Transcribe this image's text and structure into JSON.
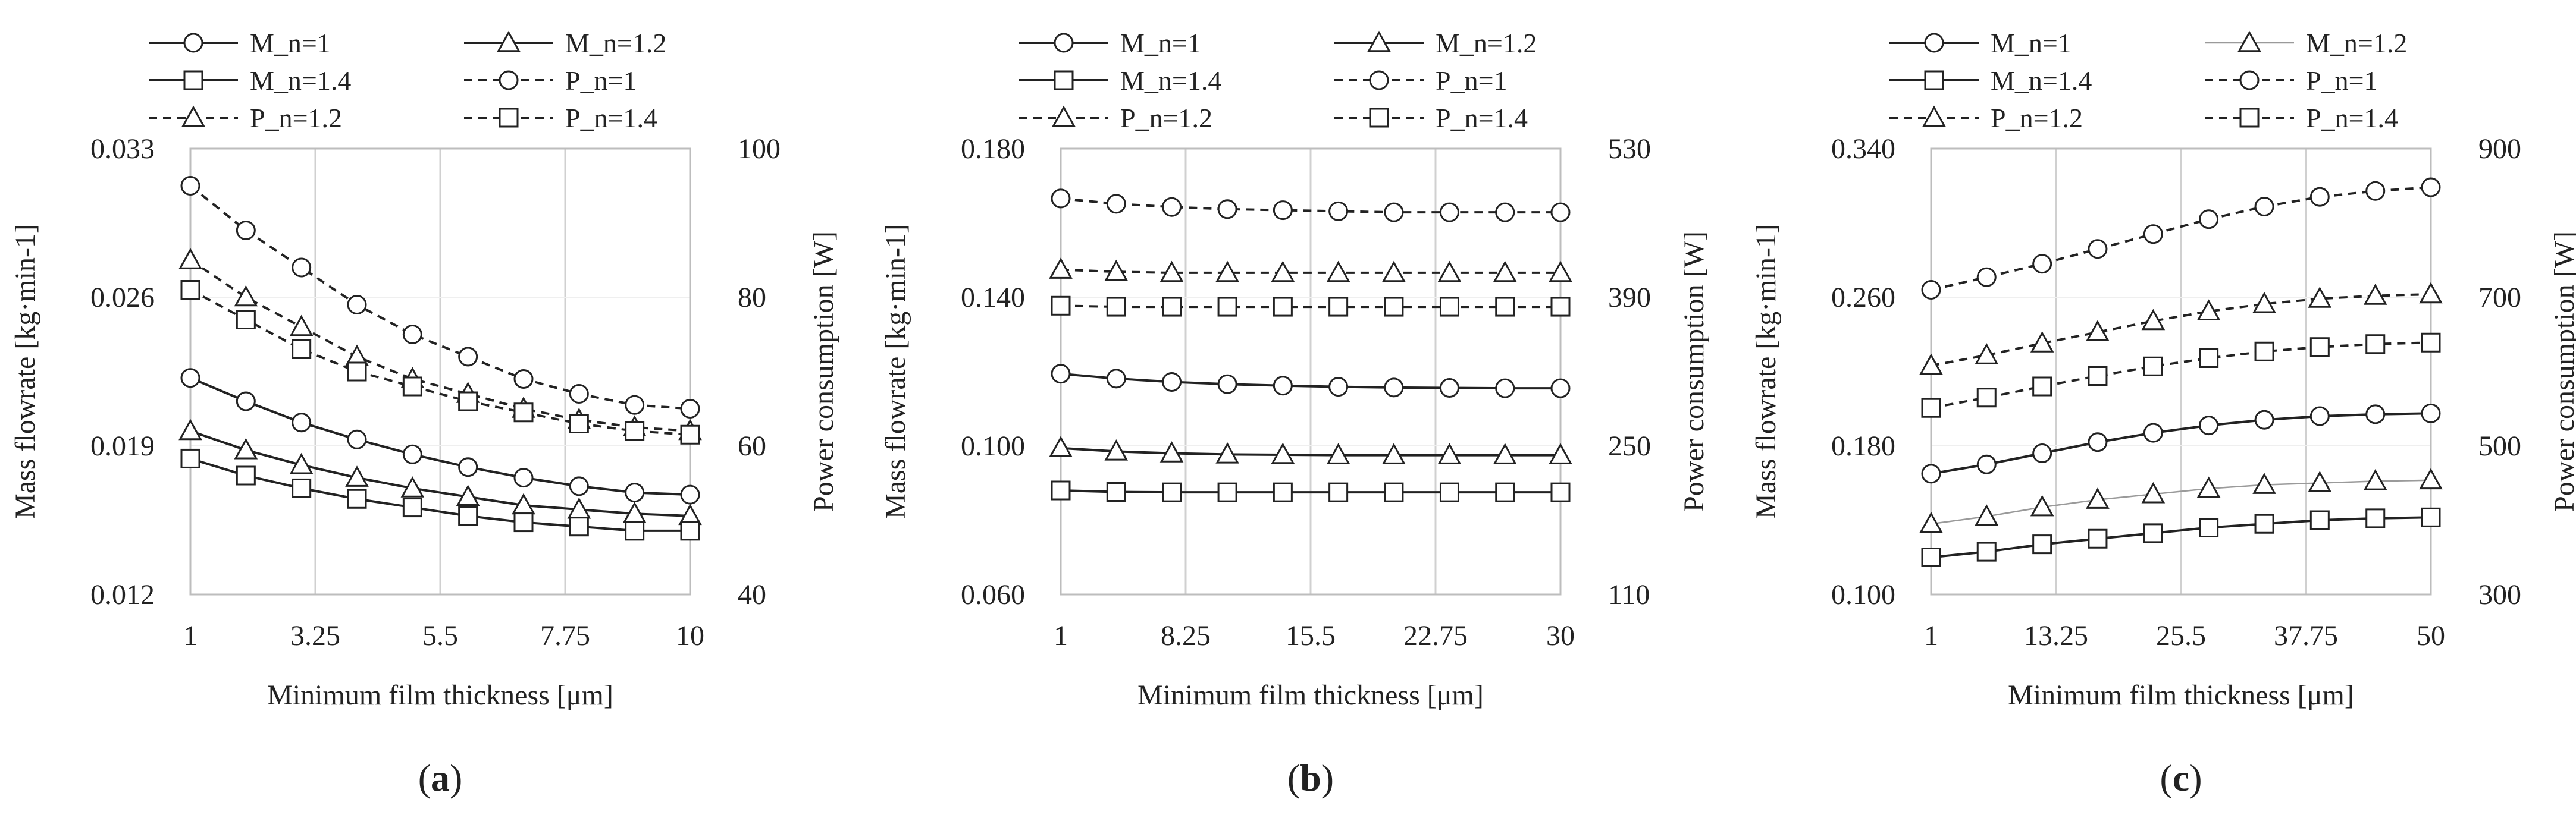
{
  "chart_data": [
    {
      "type": "line",
      "panel_label": "a",
      "x": [
        1,
        2,
        3,
        4,
        5,
        6,
        7,
        8,
        9,
        10
      ],
      "xticks": [
        "1",
        "3.25",
        "5.5",
        "7.75",
        "10"
      ],
      "xlim": [
        1,
        10
      ],
      "xlabel": "Minimum film thickness [μm]",
      "ylabel_left": "Mass flowrate [kg·min-1]",
      "ylabel_right": "Power consumption [W]",
      "ylim_left": [
        0.012,
        0.033
      ],
      "ylim_right": [
        40,
        100
      ],
      "yticks_left": [
        "0.012",
        "0.019",
        "0.026",
        "0.033"
      ],
      "yticks_right": [
        "40",
        "60",
        "80",
        "100"
      ],
      "grid": "vertical",
      "legend_position": "top",
      "series": [
        {
          "name": "M_n=1",
          "axis": "left",
          "style": "solid",
          "marker": "circle",
          "values": [
            0.0222,
            0.0211,
            0.0201,
            0.0193,
            0.0186,
            0.018,
            0.0175,
            0.0171,
            0.0168,
            0.0167
          ]
        },
        {
          "name": "M_n=1.2",
          "axis": "left",
          "style": "solid",
          "marker": "triangle",
          "values": [
            0.0197,
            0.0188,
            0.0181,
            0.0175,
            0.017,
            0.0166,
            0.0162,
            0.016,
            0.0158,
            0.0157
          ]
        },
        {
          "name": "M_n=1.4",
          "axis": "left",
          "style": "solid",
          "marker": "square",
          "values": [
            0.0184,
            0.0176,
            0.017,
            0.0165,
            0.0161,
            0.0157,
            0.0154,
            0.0152,
            0.015,
            0.015
          ]
        },
        {
          "name": "P_n=1",
          "axis": "right",
          "style": "dashed",
          "marker": "circle",
          "values": [
            95,
            89,
            84,
            79,
            75,
            72,
            69,
            67,
            65.5,
            65
          ]
        },
        {
          "name": "P_n=1.2",
          "axis": "right",
          "style": "dashed",
          "marker": "triangle",
          "values": [
            85,
            80,
            76,
            72,
            69,
            67,
            65,
            63.5,
            62.5,
            62
          ]
        },
        {
          "name": "P_n=1.4",
          "axis": "right",
          "style": "dashed",
          "marker": "square",
          "values": [
            81,
            77,
            73,
            70,
            68,
            66,
            64.5,
            63,
            62,
            61.5
          ]
        }
      ]
    },
    {
      "type": "line",
      "panel_label": "b",
      "x": [
        1,
        4.22,
        7.44,
        10.67,
        13.89,
        17.11,
        20.33,
        23.56,
        26.78,
        30
      ],
      "xticks": [
        "1",
        "8.25",
        "15.5",
        "22.75",
        "30"
      ],
      "xlim": [
        1,
        30
      ],
      "xlabel": "Minimum film thickness [μm]",
      "ylabel_left": "Mass flowrate [kg·min-1]",
      "ylabel_right": "Power consumption [W]",
      "ylim_left": [
        0.06,
        0.18
      ],
      "ylim_right": [
        110,
        530
      ],
      "yticks_left": [
        "0.060",
        "0.100",
        "0.140",
        "0.180"
      ],
      "yticks_right": [
        "110",
        "250",
        "390",
        "530"
      ],
      "grid": "vertical",
      "legend_position": "top",
      "series": [
        {
          "name": "M_n=1",
          "axis": "left",
          "style": "solid",
          "marker": "circle",
          "values": [
            0.1194,
            0.1181,
            0.1172,
            0.1166,
            0.1162,
            0.1159,
            0.1157,
            0.1156,
            0.1155,
            0.1155
          ]
        },
        {
          "name": "M_n=1.2",
          "axis": "left",
          "style": "solid",
          "marker": "triangle",
          "values": [
            0.0994,
            0.0985,
            0.098,
            0.0977,
            0.0976,
            0.0975,
            0.0975,
            0.0975,
            0.0975,
            0.0975
          ]
        },
        {
          "name": "M_n=1.4",
          "axis": "left",
          "style": "solid",
          "marker": "square",
          "values": [
            0.088,
            0.0876,
            0.0875,
            0.0875,
            0.0875,
            0.0875,
            0.0875,
            0.0875,
            0.0875,
            0.0875
          ]
        },
        {
          "name": "P_n=1",
          "axis": "right",
          "style": "dashed",
          "marker": "circle",
          "values": [
            483,
            478,
            475,
            473,
            472,
            471,
            470,
            470,
            470,
            470
          ]
        },
        {
          "name": "P_n=1.2",
          "axis": "right",
          "style": "dashed",
          "marker": "triangle",
          "values": [
            416,
            414,
            413,
            413,
            413,
            413,
            413,
            413,
            413,
            413
          ]
        },
        {
          "name": "P_n=1.4",
          "axis": "right",
          "style": "dashed",
          "marker": "square",
          "values": [
            382,
            381,
            381,
            381,
            381,
            381,
            381,
            381,
            381,
            381
          ]
        }
      ]
    },
    {
      "type": "line",
      "panel_label": "c",
      "x": [
        1,
        6.44,
        11.89,
        17.33,
        22.78,
        28.22,
        33.67,
        39.11,
        44.56,
        50
      ],
      "xticks": [
        "1",
        "13.25",
        "25.5",
        "37.75",
        "50"
      ],
      "xlim": [
        1,
        50
      ],
      "xlabel": "Minimum film thickness [μm]",
      "ylabel_left": "Mass flowrate [kg·min-1]",
      "ylabel_right": "Power consumption [W]",
      "ylim_left": [
        0.1,
        0.34
      ],
      "ylim_right": [
        300,
        900
      ],
      "yticks_left": [
        "0.100",
        "0.180",
        "0.260",
        "0.340"
      ],
      "yticks_right": [
        "300",
        "500",
        "700",
        "900"
      ],
      "grid": "vertical",
      "legend_position": "top",
      "series": [
        {
          "name": "M_n=1",
          "axis": "left",
          "style": "solid",
          "marker": "circle",
          "values": [
            0.165,
            0.17,
            0.176,
            0.182,
            0.187,
            0.191,
            0.194,
            0.196,
            0.197,
            0.1975
          ]
        },
        {
          "name": "M_n=1.2",
          "axis": "left",
          "style": "solid",
          "marker": "triangle",
          "values": [
            0.138,
            0.142,
            0.147,
            0.151,
            0.154,
            0.157,
            0.159,
            0.16,
            0.161,
            0.1615
          ]
        },
        {
          "name": "M_n=1.4",
          "axis": "left",
          "style": "solid",
          "marker": "square",
          "values": [
            0.12,
            0.123,
            0.127,
            0.13,
            0.133,
            0.136,
            0.138,
            0.14,
            0.141,
            0.1415
          ]
        },
        {
          "name": "P_n=1",
          "axis": "right",
          "style": "dashed",
          "marker": "circle",
          "values": [
            710,
            727,
            745,
            765,
            785,
            805,
            822,
            835,
            843,
            848
          ]
        },
        {
          "name": "P_n=1.2",
          "axis": "right",
          "style": "dashed",
          "marker": "triangle",
          "values": [
            608,
            622,
            638,
            653,
            668,
            681,
            691,
            698,
            702,
            704
          ]
        },
        {
          "name": "P_n=1.4",
          "axis": "right",
          "style": "dashed",
          "marker": "square",
          "values": [
            551,
            565,
            580,
            594,
            607,
            618,
            627,
            633,
            637,
            639
          ]
        }
      ]
    }
  ]
}
